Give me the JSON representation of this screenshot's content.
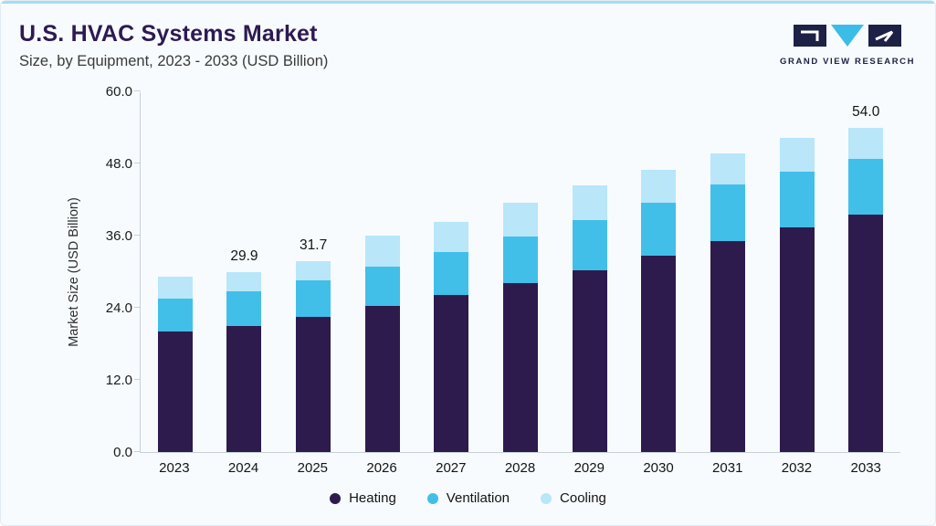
{
  "header": {
    "title": "U.S. HVAC Systems Market",
    "subtitle": "Size, by Equipment, 2023 - 2033 (USD Billion)",
    "logo_text": "GRAND VIEW RESEARCH"
  },
  "colors": {
    "heating": "#2D1B4E",
    "ventilation": "#41BFE9",
    "cooling": "#B9E6F9",
    "title_text": "#2d1a52",
    "accent_line": "#a5dcf2",
    "axis_line": "#c7d1d9",
    "background": "#f7fbfd"
  },
  "chart_data": {
    "type": "bar",
    "stacked": true,
    "title": "U.S. HVAC Systems Market",
    "subtitle": "Size, by Equipment, 2023 - 2033 (USD Billion)",
    "xlabel": "",
    "ylabel": "Market Size (USD Billion)",
    "ylim": [
      0,
      60
    ],
    "yticks": [
      0,
      12,
      24,
      36,
      48,
      60
    ],
    "grid": false,
    "legend_position": "bottom",
    "categories": [
      "2023",
      "2024",
      "2025",
      "2026",
      "2027",
      "2028",
      "2029",
      "2030",
      "2031",
      "2032",
      "2033"
    ],
    "series": [
      {
        "name": "Heating",
        "color": "#2D1B4E",
        "values": [
          20.0,
          21.0,
          22.5,
          24.3,
          26.1,
          28.1,
          30.3,
          32.6,
          35.1,
          37.3,
          39.5
        ]
      },
      {
        "name": "Ventilation",
        "color": "#41BFE9",
        "values": [
          5.5,
          5.7,
          6.1,
          6.6,
          7.1,
          7.7,
          8.3,
          8.9,
          9.4,
          9.3,
          9.2
        ]
      },
      {
        "name": "Cooling",
        "color": "#B9E6F9",
        "values": [
          3.7,
          3.2,
          3.1,
          5.1,
          5.1,
          5.6,
          5.7,
          5.5,
          5.2,
          5.6,
          5.3
        ]
      }
    ],
    "totals": [
      29.2,
      29.9,
      31.7,
      36.0,
      38.3,
      41.4,
      44.3,
      47.0,
      49.7,
      52.2,
      54.0
    ],
    "bar_labels": [
      "",
      "29.9",
      "31.7",
      "",
      "",
      "",
      "",
      "",
      "",
      "",
      "54.0"
    ]
  }
}
